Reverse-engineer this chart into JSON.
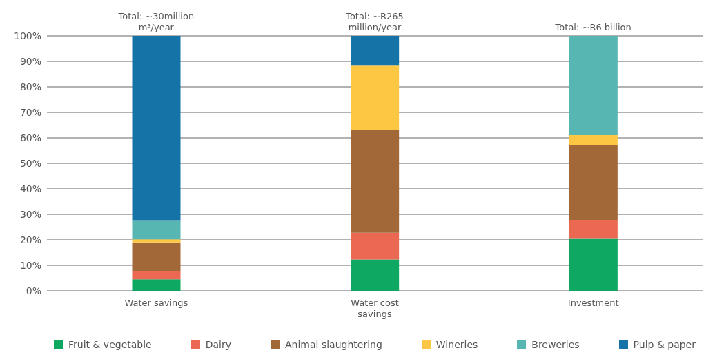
{
  "chart_data": {
    "type": "bar",
    "stacked": true,
    "categories": [
      "Water savings",
      "Water cost savings",
      "Investment"
    ],
    "series": [
      {
        "name": "Fruit & vegetable",
        "color": "#0fa862",
        "values": [
          4.5,
          12.3,
          20.4
        ]
      },
      {
        "name": "Dairy",
        "color": "#eb6952",
        "values": [
          3.2,
          10.5,
          7.3
        ]
      },
      {
        "name": "Animal slaughtering",
        "color": "#a36838",
        "values": [
          11.3,
          40.2,
          29.4
        ]
      },
      {
        "name": "Wineries",
        "color": "#fdc743",
        "values": [
          1.2,
          25.3,
          4.0
        ]
      },
      {
        "name": "Breweries",
        "color": "#57b6b2",
        "values": [
          7.2,
          0,
          38.9
        ]
      },
      {
        "name": "Pulp & paper",
        "color": "#1573a8",
        "values": [
          72.6,
          11.7,
          0
        ]
      }
    ],
    "annotations": [
      {
        "text": "Total: ~30million m³/year",
        "x": "Water savings",
        "y": 100
      },
      {
        "text": "Total: ~R265 million/year",
        "x": "Water cost savings",
        "y": 100
      },
      {
        "text": "Total: ~R6 billion",
        "x": "Investment",
        "y": 100
      }
    ],
    "ylim": [
      0,
      100
    ],
    "yticks": [
      {
        "value": 0,
        "label": "0%"
      },
      {
        "value": 10,
        "label": "10%"
      },
      {
        "value": 20,
        "label": "20%"
      },
      {
        "value": 30,
        "label": "30%"
      },
      {
        "value": 40,
        "label": "40%"
      },
      {
        "value": 50,
        "label": "50%"
      },
      {
        "value": 60,
        "label": "60%"
      },
      {
        "value": 70,
        "label": "70%"
      },
      {
        "value": 80,
        "label": "80%"
      },
      {
        "value": 90,
        "label": "90%"
      },
      {
        "value": 100,
        "label": "100%"
      }
    ],
    "grid": "y",
    "legend": "bottom"
  }
}
